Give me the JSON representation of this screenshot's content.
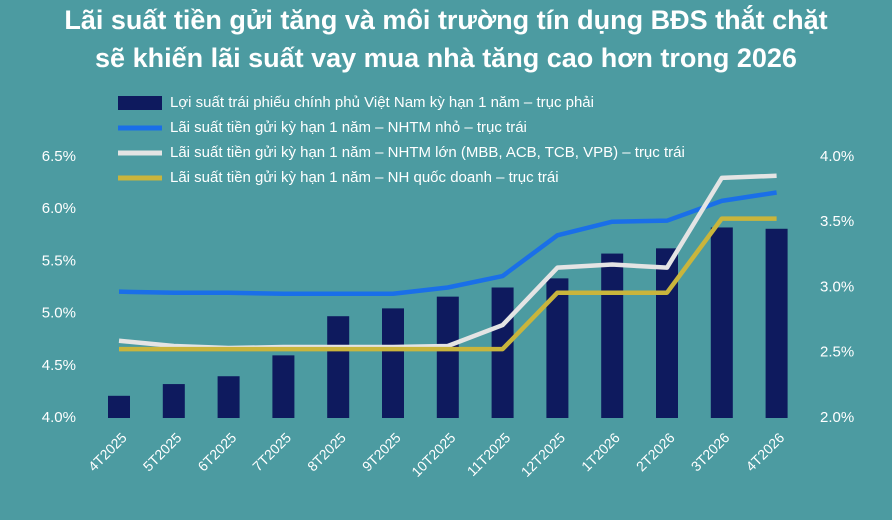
{
  "chart_data": {
    "type": "combo",
    "title": [
      "Lãi suất tiền gửi tăng và môi trường tín dụng BĐS thắt chặt",
      "sẽ khiến lãi suất vay mua nhà tăng cao hơn trong 2026"
    ],
    "categories": [
      "4T2025",
      "5T2025",
      "6T2025",
      "7T2025",
      "8T2025",
      "9T2025",
      "10T2025",
      "11T2025",
      "12T2025",
      "1T2026",
      "2T2026",
      "3T2026",
      "4T2026"
    ],
    "series": [
      {
        "name": "Lợi suất trái phiếu chính phủ Việt Nam kỳ hạn 1 năm – trục phải",
        "type": "bar",
        "axis": "y2",
        "color": "#0e1a5e",
        "values": [
          2.17,
          2.26,
          2.32,
          2.48,
          2.78,
          2.84,
          2.93,
          3.0,
          3.07,
          3.26,
          3.3,
          3.46,
          3.45
        ]
      },
      {
        "name": "Lãi suất tiền gửi kỳ hạn 1 năm – NHTM nhỏ – trục trái",
        "type": "line",
        "color": "#1a6fe8",
        "values": [
          5.21,
          5.2,
          5.2,
          5.19,
          5.19,
          5.19,
          5.25,
          5.36,
          5.75,
          5.88,
          5.89,
          6.08,
          6.16
        ]
      },
      {
        "name": "Lãi suất tiền gửi kỳ hạn 1 năm – NHTM lớn (MBB, ACB, TCB, VPB) – trục trái",
        "type": "line",
        "color": "#e4e4e4",
        "values": [
          4.74,
          4.69,
          4.67,
          4.68,
          4.68,
          4.68,
          4.69,
          4.89,
          5.44,
          5.47,
          5.44,
          6.3,
          6.32
        ]
      },
      {
        "name": "Lãi suất tiền gửi kỳ hạn 1 năm – NH quốc doanh – trục trái",
        "type": "line",
        "color": "#c9b53c",
        "values": [
          4.66,
          4.66,
          4.66,
          4.66,
          4.66,
          4.66,
          4.66,
          4.66,
          5.2,
          5.2,
          5.2,
          5.91,
          5.91
        ]
      }
    ],
    "ylim": [
      4.0,
      6.5
    ],
    "yticks": [
      {
        "value": 4.0,
        "label": "4.0%"
      },
      {
        "value": 4.5,
        "label": "4.5%"
      },
      {
        "value": 5.0,
        "label": "5.0%"
      },
      {
        "value": 5.5,
        "label": "5.5%"
      },
      {
        "value": 6.0,
        "label": "6.0%"
      },
      {
        "value": 6.5,
        "label": "6.5%"
      }
    ],
    "y2lim": [
      2.0,
      4.0
    ],
    "y2ticks": [
      {
        "value": 2.0,
        "label": "2.0%"
      },
      {
        "value": 2.5,
        "label": "2.5%"
      },
      {
        "value": 3.0,
        "label": "3.0%"
      },
      {
        "value": 3.5,
        "label": "3.5%"
      },
      {
        "value": 4.0,
        "label": "4.0%"
      }
    ]
  }
}
